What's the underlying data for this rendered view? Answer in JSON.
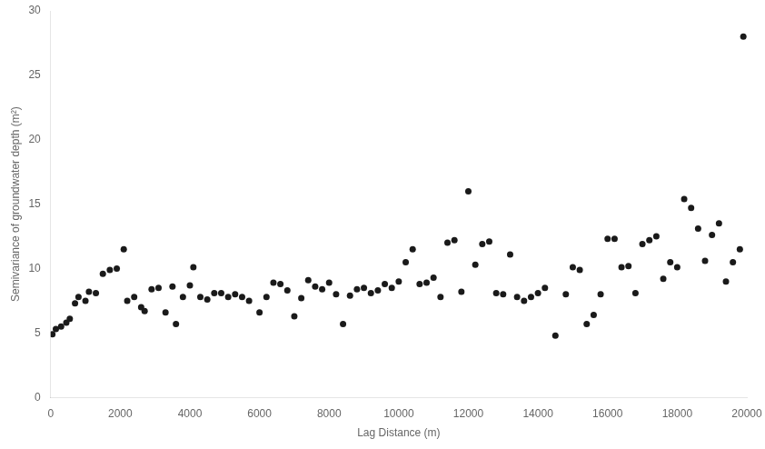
{
  "chart_data": {
    "type": "scatter",
    "xlabel": "Lag Distance (m)",
    "ylabel": "Semivariance of groundwater depth (m²)",
    "x": [
      50,
      150,
      300,
      450,
      550,
      700,
      800,
      1000,
      1100,
      1300,
      1500,
      1700,
      1900,
      2100,
      2200,
      2400,
      2600,
      2700,
      2900,
      3100,
      3300,
      3500,
      3600,
      3800,
      4000,
      4100,
      4300,
      4500,
      4700,
      4900,
      5100,
      5300,
      5500,
      5700,
      6000,
      6200,
      6400,
      6600,
      6800,
      7000,
      7200,
      7400,
      7600,
      7800,
      8000,
      8200,
      8400,
      8600,
      8800,
      9000,
      9200,
      9400,
      9600,
      9800,
      10000,
      10200,
      10400,
      10600,
      10800,
      11000,
      11200,
      11400,
      11600,
      11800,
      12000,
      12200,
      12400,
      12600,
      12800,
      13000,
      13200,
      13400,
      13600,
      13800,
      14000,
      14200,
      14500,
      14800,
      15000,
      15200,
      15400,
      15600,
      15800,
      16000,
      16200,
      16400,
      16600,
      16800,
      17000,
      17200,
      17400,
      17600,
      17800,
      18000,
      18200,
      18400,
      18600,
      18800,
      19000,
      19200,
      19400,
      19600,
      19800,
      19900
    ],
    "values": [
      4.9,
      5.3,
      5.5,
      5.8,
      6.1,
      7.3,
      7.8,
      7.5,
      8.2,
      8.1,
      9.6,
      9.9,
      10.0,
      11.5,
      7.5,
      7.8,
      7.0,
      6.7,
      8.4,
      8.5,
      6.6,
      8.6,
      5.7,
      7.8,
      8.7,
      10.1,
      7.8,
      7.6,
      8.1,
      8.1,
      7.8,
      8.0,
      7.8,
      7.5,
      6.6,
      7.8,
      8.9,
      8.8,
      8.3,
      6.3,
      7.7,
      9.1,
      8.6,
      8.4,
      8.9,
      8.0,
      5.7,
      7.9,
      8.4,
      8.5,
      8.1,
      8.3,
      8.8,
      8.5,
      9.0,
      10.5,
      11.5,
      8.8,
      8.9,
      9.3,
      7.8,
      12.0,
      12.2,
      8.2,
      16.0,
      10.3,
      11.9,
      12.1,
      8.1,
      8.0,
      11.1,
      7.8,
      7.5,
      7.8,
      8.1,
      8.5,
      4.8,
      8.0,
      10.1,
      9.9,
      5.7,
      6.4,
      8.0,
      12.3,
      12.3,
      10.1,
      10.2,
      8.1,
      11.9,
      12.2,
      12.5,
      9.2,
      10.5,
      10.1,
      15.4,
      14.7,
      13.1,
      10.6,
      12.6,
      13.5,
      9.0,
      10.5,
      11.5,
      28.0
    ],
    "color": "#1a1a1a",
    "xlim": [
      0,
      20000
    ],
    "ylim": [
      0,
      30
    ],
    "xticks": [
      0,
      2000,
      4000,
      6000,
      8000,
      10000,
      12000,
      14000,
      16000,
      18000,
      20000
    ],
    "yticks": [
      0,
      5,
      10,
      15,
      20,
      25,
      30
    ],
    "grid": false
  }
}
